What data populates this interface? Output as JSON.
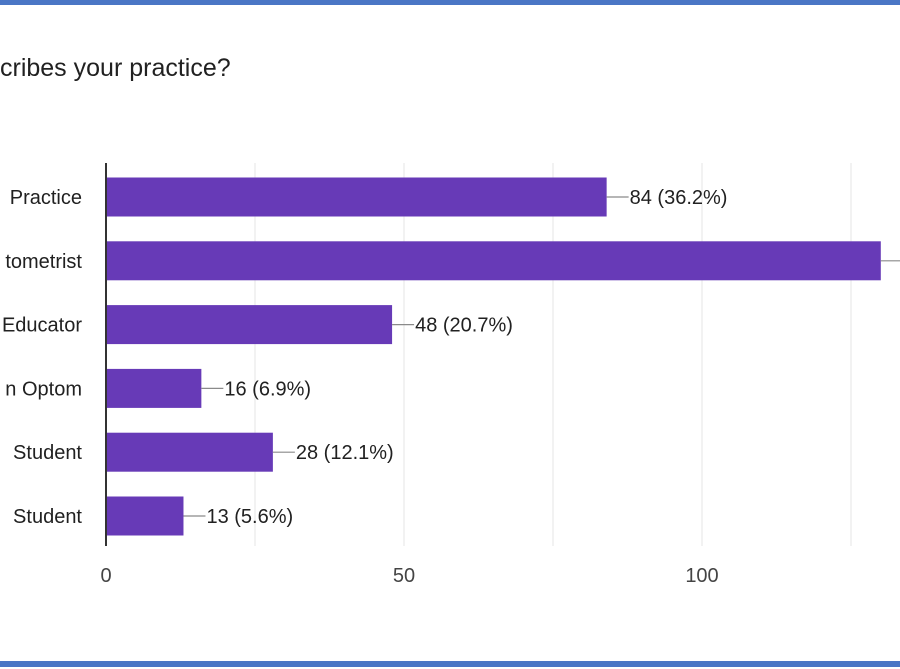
{
  "colors": {
    "frame": "#4a76c5",
    "bar": "#673ab7",
    "grid": "#e6e6e6",
    "axis": "#333333",
    "text": "#212121",
    "leader": "#8a8a8a"
  },
  "chart_data": {
    "type": "bar",
    "orientation": "horizontal",
    "title": "cribes your practice?",
    "categories": [
      "Practice",
      "tometrist",
      "Educator",
      "n Optom",
      "Student",
      "Student"
    ],
    "series": [
      {
        "values": [
          84,
          130,
          48,
          16,
          28,
          13
        ]
      }
    ],
    "data_labels": [
      "84 (36.2%)",
      "",
      "48 (20.7%)",
      "16 (6.9%)",
      "28 (12.1%)",
      "13 (5.6%)"
    ],
    "x_ticks": [
      0,
      50,
      100
    ],
    "x_tick_labels": [
      "0",
      "50",
      "100"
    ],
    "xlim": [
      0,
      150
    ],
    "grid": true,
    "legend": "none"
  }
}
